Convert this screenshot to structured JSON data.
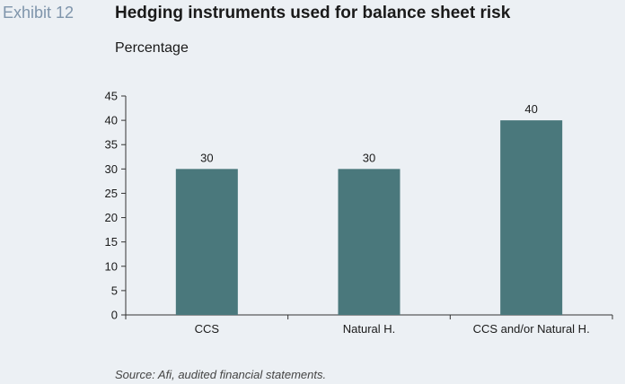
{
  "exhibit_label": "Exhibit 12",
  "title": "Hedging instruments used for balance sheet risk",
  "subtitle": "Percentage",
  "source": "Source: Afi, audited financial statements.",
  "colors": {
    "bar": "#4a787c",
    "background": "#ecf0f4",
    "axis": "#333333"
  },
  "chart_data": {
    "type": "bar",
    "title": "Hedging instruments used for balance sheet risk",
    "ylabel": "Percentage",
    "xlabel": "",
    "categories": [
      "CCS",
      "Natural H.",
      "CCS and/or Natural H."
    ],
    "values": [
      30,
      30,
      40
    ],
    "data_labels": [
      "30",
      "30",
      "40"
    ],
    "ylim": [
      0,
      45
    ],
    "yticks": [
      0,
      5,
      10,
      15,
      20,
      25,
      30,
      35,
      40,
      45
    ],
    "grid": false,
    "legend": "none"
  }
}
